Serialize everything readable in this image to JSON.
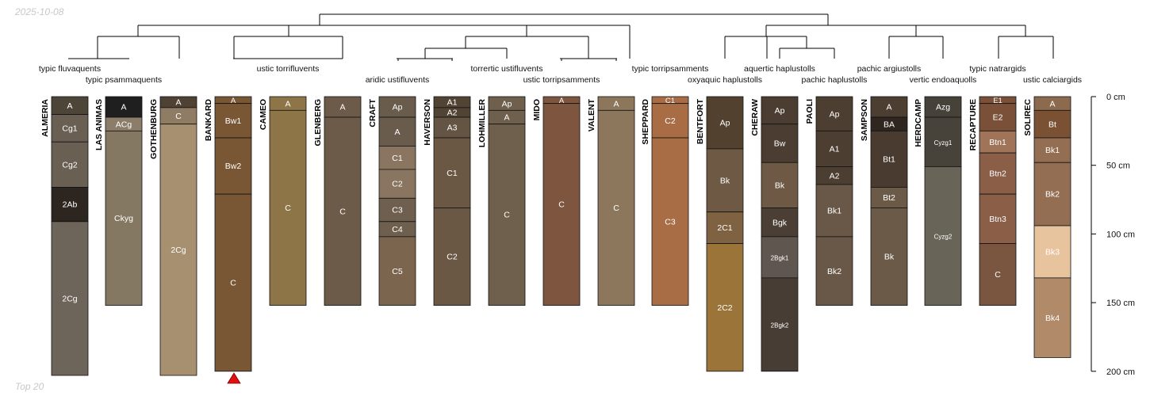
{
  "watermark_top": "2025-10-08",
  "watermark_bottom": "Top 20",
  "depth_axis": {
    "unit": "cm",
    "max": 200,
    "ticks": [
      "0 cm",
      "50 cm",
      "100 cm",
      "150 cm",
      "200 cm"
    ]
  },
  "profiles": [
    {
      "name": "ALMERIA",
      "taxon": "typic fluvaquents",
      "hz": [
        {
          "n": "A",
          "t": 0,
          "b": 13,
          "c": "#4e4539"
        },
        {
          "n": "Cg1",
          "t": 13,
          "b": 33,
          "c": "#6a5f53"
        },
        {
          "n": "Cg2",
          "t": 33,
          "b": 66,
          "c": "#6a5f53"
        },
        {
          "n": "2Ab",
          "t": 66,
          "b": 91,
          "c": "#2c2520"
        },
        {
          "n": "2Cg",
          "t": 91,
          "b": 203,
          "c": "#6d645a"
        }
      ]
    },
    {
      "name": "LAS ANIMAS",
      "taxon": "typic psammaquents",
      "hz": [
        {
          "n": "A",
          "t": 0,
          "b": 15,
          "c": "#1f1f1f"
        },
        {
          "n": "ACg",
          "t": 15,
          "b": 25,
          "c": "#8c7d6a"
        },
        {
          "n": "Ckyg",
          "t": 25,
          "b": 152,
          "c": "#847863"
        }
      ]
    },
    {
      "name": "GOTHENBURG",
      "taxon": "",
      "hz": [
        {
          "n": "A",
          "t": 0,
          "b": 8,
          "c": "#4f4234"
        },
        {
          "n": "C",
          "t": 8,
          "b": 20,
          "c": "#8e7c65"
        },
        {
          "n": "2Cg",
          "t": 20,
          "b": 203,
          "c": "#a6906f"
        }
      ]
    },
    {
      "name": "BANKARD",
      "taxon": "ustic torrifluvents",
      "hz": [
        {
          "n": "A",
          "t": 0,
          "b": 5,
          "c": "#7a5734"
        },
        {
          "n": "Bw1",
          "t": 5,
          "b": 30,
          "c": "#7a5734"
        },
        {
          "n": "Bw2",
          "t": 30,
          "b": 71,
          "c": "#7a5734"
        },
        {
          "n": "C",
          "t": 71,
          "b": 200,
          "c": "#7a5734"
        }
      ]
    },
    {
      "name": "CAMEO",
      "taxon": "",
      "hz": [
        {
          "n": "A",
          "t": 0,
          "b": 10,
          "c": "#8e7548"
        },
        {
          "n": "C",
          "t": 10,
          "b": 152,
          "c": "#8e7548"
        }
      ]
    },
    {
      "name": "GLENBERG",
      "taxon": "",
      "hz": [
        {
          "n": "A",
          "t": 0,
          "b": 15,
          "c": "#6d5b49"
        },
        {
          "n": "C",
          "t": 15,
          "b": 152,
          "c": "#6d5b49"
        }
      ]
    },
    {
      "name": "CRAFT",
      "taxon": "aridic ustifluvents",
      "hz": [
        {
          "n": "Ap",
          "t": 0,
          "b": 15,
          "c": "#6a5c4c"
        },
        {
          "n": "A",
          "t": 15,
          "b": 36,
          "c": "#6a5c4c"
        },
        {
          "n": "C1",
          "t": 36,
          "b": 53,
          "c": "#8a7561"
        },
        {
          "n": "C2",
          "t": 53,
          "b": 74,
          "c": "#8a7561"
        },
        {
          "n": "C3",
          "t": 74,
          "b": 91,
          "c": "#6f5f4f"
        },
        {
          "n": "C4",
          "t": 91,
          "b": 102,
          "c": "#6f5f4f"
        },
        {
          "n": "C5",
          "t": 102,
          "b": 152,
          "c": "#7c654f"
        }
      ]
    },
    {
      "name": "HAVERSON",
      "taxon": "",
      "hz": [
        {
          "n": "A1",
          "t": 0,
          "b": 8,
          "c": "#524434"
        },
        {
          "n": "A2",
          "t": 8,
          "b": 15,
          "c": "#524434"
        },
        {
          "n": "A3",
          "t": 15,
          "b": 30,
          "c": "#645443"
        },
        {
          "n": "C1",
          "t": 30,
          "b": 81,
          "c": "#6a5845"
        },
        {
          "n": "C2",
          "t": 81,
          "b": 152,
          "c": "#6a5845"
        }
      ]
    },
    {
      "name": "LOHMILLER",
      "taxon": "torrertic ustifluvents",
      "hz": [
        {
          "n": "Ap",
          "t": 0,
          "b": 10,
          "c": "#6e604d"
        },
        {
          "n": "A",
          "t": 10,
          "b": 20,
          "c": "#6e604d"
        },
        {
          "n": "C",
          "t": 20,
          "b": 152,
          "c": "#6e604d"
        }
      ]
    },
    {
      "name": "MIDO",
      "taxon": "ustic torripsamments",
      "hz": [
        {
          "n": "A",
          "t": 0,
          "b": 5,
          "c": "#7e553f"
        },
        {
          "n": "C",
          "t": 5,
          "b": 152,
          "c": "#7e553f"
        }
      ]
    },
    {
      "name": "VALENT",
      "taxon": "",
      "hz": [
        {
          "n": "A",
          "t": 0,
          "b": 10,
          "c": "#8c765c"
        },
        {
          "n": "C",
          "t": 10,
          "b": 152,
          "c": "#8c765c"
        }
      ]
    },
    {
      "name": "SHEPPARD",
      "taxon": "typic torripsamments",
      "hz": [
        {
          "n": "C1",
          "t": 0,
          "b": 5,
          "c": "#a86d45"
        },
        {
          "n": "C2",
          "t": 5,
          "b": 30,
          "c": "#a86d45"
        },
        {
          "n": "C3",
          "t": 30,
          "b": 152,
          "c": "#a86d45"
        }
      ]
    },
    {
      "name": "BENTFORT",
      "taxon": "oxyaquic haplustolls",
      "hz": [
        {
          "n": "Ap",
          "t": 0,
          "b": 38,
          "c": "#534130"
        },
        {
          "n": "Bk",
          "t": 38,
          "b": 84,
          "c": "#6e5a44"
        },
        {
          "n": "2C1",
          "t": 84,
          "b": 107,
          "c": "#7e6241"
        },
        {
          "n": "2C2",
          "t": 107,
          "b": 200,
          "c": "#9a7438"
        }
      ]
    },
    {
      "name": "CHERAW",
      "taxon": "aquertic haplustolls",
      "hz": [
        {
          "n": "Ap",
          "t": 0,
          "b": 20,
          "c": "#4b3d31"
        },
        {
          "n": "Bw",
          "t": 20,
          "b": 48,
          "c": "#4b3d31"
        },
        {
          "n": "Bk",
          "t": 48,
          "b": 81,
          "c": "#6e5a44"
        },
        {
          "n": "Bgk",
          "t": 81,
          "b": 102,
          "c": "#4a3e35"
        },
        {
          "n": "2Bgk1",
          "t": 102,
          "b": 132,
          "c": "#605650"
        },
        {
          "n": "2Bgk2",
          "t": 132,
          "b": 200,
          "c": "#483d35"
        }
      ]
    },
    {
      "name": "PAOLI",
      "taxon": "pachic haplustolls",
      "hz": [
        {
          "n": "Ap",
          "t": 0,
          "b": 25,
          "c": "#4c3e31"
        },
        {
          "n": "A1",
          "t": 25,
          "b": 51,
          "c": "#4c3e31"
        },
        {
          "n": "A2",
          "t": 51,
          "b": 64,
          "c": "#4c3e31"
        },
        {
          "n": "Bk1",
          "t": 64,
          "b": 102,
          "c": "#695848"
        },
        {
          "n": "Bk2",
          "t": 102,
          "b": 152,
          "c": "#695848"
        }
      ]
    },
    {
      "name": "SAMPSON",
      "taxon": "pachic argiustolls",
      "hz": [
        {
          "n": "A",
          "t": 0,
          "b": 15,
          "c": "#4d3e32"
        },
        {
          "n": "BA",
          "t": 15,
          "b": 25,
          "c": "#2f2620"
        },
        {
          "n": "Bt1",
          "t": 25,
          "b": 66,
          "c": "#4a3b30"
        },
        {
          "n": "Bt2",
          "t": 66,
          "b": 81,
          "c": "#6b5a47"
        },
        {
          "n": "Bk",
          "t": 81,
          "b": 152,
          "c": "#6b5a47"
        }
      ]
    },
    {
      "name": "HERDCAMP",
      "taxon": "vertic endoaquolls",
      "hz": [
        {
          "n": "Azg",
          "t": 0,
          "b": 15,
          "c": "#46423a"
        },
        {
          "n": "Cyzg1",
          "t": 15,
          "b": 51,
          "c": "#48433a"
        },
        {
          "n": "Cyzg2",
          "t": 51,
          "b": 152,
          "c": "#686457"
        }
      ]
    },
    {
      "name": "RECAPTURE",
      "taxon": "typic natrargids",
      "hz": [
        {
          "n": "E1",
          "t": 0,
          "b": 5,
          "c": "#7b5038"
        },
        {
          "n": "E2",
          "t": 5,
          "b": 25,
          "c": "#7b5038"
        },
        {
          "n": "Btn1",
          "t": 25,
          "b": 41,
          "c": "#a07458"
        },
        {
          "n": "Btn2",
          "t": 41,
          "b": 71,
          "c": "#8a5e47"
        },
        {
          "n": "Btn3",
          "t": 71,
          "b": 107,
          "c": "#8a5e47"
        },
        {
          "n": "C",
          "t": 107,
          "b": 152,
          "c": "#7a5640"
        }
      ]
    },
    {
      "name": "SOLIREC",
      "taxon": "ustic calciargids",
      "hz": [
        {
          "n": "A",
          "t": 0,
          "b": 10,
          "c": "#8c6a4d"
        },
        {
          "n": "Bt",
          "t": 10,
          "b": 30,
          "c": "#7a5233"
        },
        {
          "n": "Bk1",
          "t": 30,
          "b": 48,
          "c": "#946e53"
        },
        {
          "n": "Bk2",
          "t": 48,
          "b": 94,
          "c": "#946e53"
        },
        {
          "n": "Bk3",
          "t": 94,
          "b": 132,
          "c": "#e8c49e"
        },
        {
          "n": "Bk4",
          "t": 132,
          "b": 190,
          "c": "#b08a69"
        }
      ]
    }
  ]
}
